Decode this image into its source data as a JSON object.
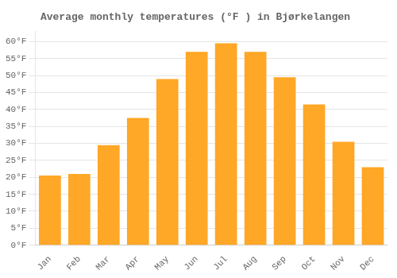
{
  "chart_data": {
    "type": "bar",
    "title": "Average monthly temperatures (°F ) in Bjørkelangen",
    "categories": [
      "Jan",
      "Feb",
      "Mar",
      "Apr",
      "May",
      "Jun",
      "Jul",
      "Aug",
      "Sep",
      "Oct",
      "Nov",
      "Dec"
    ],
    "values": [
      20.5,
      21.0,
      29.5,
      37.5,
      49.0,
      57.0,
      59.5,
      57.0,
      49.5,
      41.5,
      30.5,
      23.0
    ],
    "color": "#FFA726",
    "ylim": [
      0,
      63
    ],
    "yticks": [
      {
        "value": 0,
        "label": "0°F"
      },
      {
        "value": 5,
        "label": "5°F"
      },
      {
        "value": 10,
        "label": "10°F"
      },
      {
        "value": 15,
        "label": "15°F"
      },
      {
        "value": 20,
        "label": "20°F"
      },
      {
        "value": 25,
        "label": "25°F"
      },
      {
        "value": 30,
        "label": "30°F"
      },
      {
        "value": 35,
        "label": "35°F"
      },
      {
        "value": 40,
        "label": "40°F"
      },
      {
        "value": 45,
        "label": "45°F"
      },
      {
        "value": 50,
        "label": "50°F"
      },
      {
        "value": 55,
        "label": "55°F"
      },
      {
        "value": 60,
        "label": "60°F"
      }
    ],
    "grid": true
  }
}
